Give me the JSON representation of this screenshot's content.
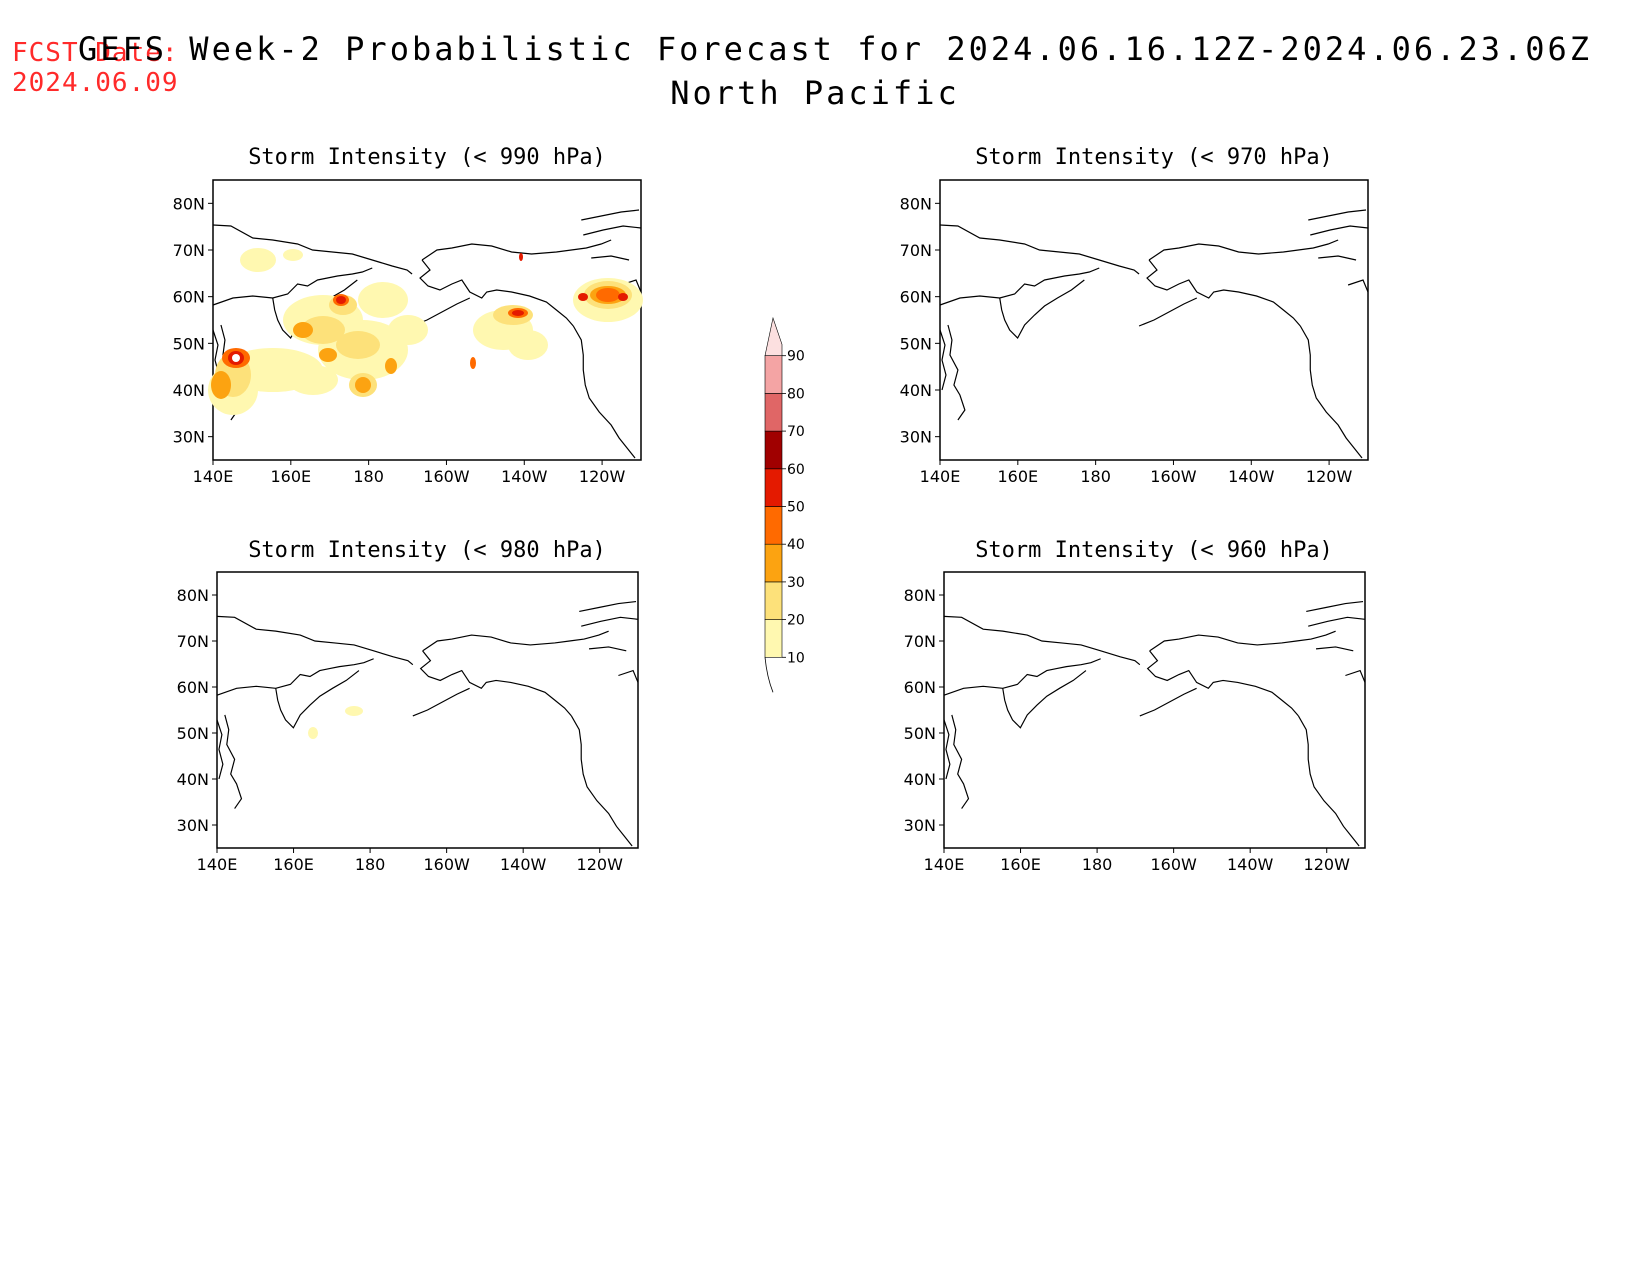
{
  "header": {
    "fcst_label": "FCST Date:",
    "fcst_date": "2024.06.09",
    "title_line1": "GEFS Week-2 Probabilistic Forecast for 2024.06.16.12Z-2024.06.23.06Z",
    "title_line2": "North Pacific"
  },
  "panels": [
    {
      "id": "p990",
      "title": "Storm Intensity (< 990 hPa)"
    },
    {
      "id": "p970",
      "title": "Storm Intensity (< 970 hPa)"
    },
    {
      "id": "p980",
      "title": "Storm Intensity (< 980 hPa)"
    },
    {
      "id": "p960",
      "title": "Storm Intensity (< 960 hPa)"
    }
  ],
  "axes": {
    "lon_labels": [
      "140E",
      "160E",
      "180",
      "160W",
      "140W",
      "120W"
    ],
    "lat_labels": [
      "80N",
      "70N",
      "60N",
      "50N",
      "40N",
      "30N"
    ],
    "lon_range": [
      140,
      250
    ],
    "lat_range": [
      25,
      85
    ]
  },
  "colorbar": {
    "labels": [
      "10",
      "20",
      "30",
      "40",
      "50",
      "60",
      "70",
      "80",
      "90"
    ],
    "colors": [
      "#fff8b0",
      "#fde17a",
      "#fca311",
      "#ff6a00",
      "#e41a00",
      "#a00000",
      "#e06666",
      "#f4a4a4",
      "#fce0e0"
    ]
  }
}
